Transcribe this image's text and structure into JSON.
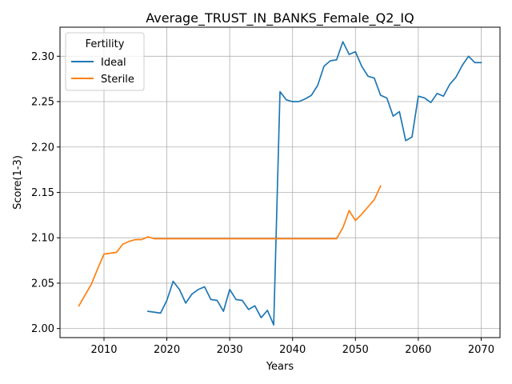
{
  "chart_data": {
    "type": "line",
    "title": "Average_TRUST_IN_BANKS_Female_Q2_IQ",
    "xlabel": "Years",
    "ylabel": "Score(1-3)",
    "xlim": [
      2003,
      2073
    ],
    "ylim": [
      1.99,
      2.332
    ],
    "x_ticks": [
      2010,
      2020,
      2030,
      2040,
      2050,
      2060,
      2070
    ],
    "y_ticks": [
      2.0,
      2.05,
      2.1,
      2.15,
      2.2,
      2.25,
      2.3
    ],
    "x_tick_labels": [
      "2010",
      "2020",
      "2030",
      "2040",
      "2050",
      "2060",
      "2070"
    ],
    "y_tick_labels": [
      "2.00",
      "2.05",
      "2.10",
      "2.15",
      "2.20",
      "2.25",
      "2.30"
    ],
    "grid": true,
    "legend": {
      "title": "Fertility",
      "placement": "top-left"
    },
    "series": [
      {
        "name": "Ideal",
        "color": "#1f77b4",
        "points": [
          [
            2017,
            2.019
          ],
          [
            2018,
            2.018
          ],
          [
            2019,
            2.017
          ],
          [
            2020,
            2.031
          ],
          [
            2021,
            2.052
          ],
          [
            2022,
            2.043
          ],
          [
            2023,
            2.028
          ],
          [
            2024,
            2.038
          ],
          [
            2025,
            2.043
          ],
          [
            2026,
            2.046
          ],
          [
            2027,
            2.032
          ],
          [
            2028,
            2.031
          ],
          [
            2029,
            2.019
          ],
          [
            2030,
            2.043
          ],
          [
            2031,
            2.032
          ],
          [
            2032,
            2.031
          ],
          [
            2033,
            2.021
          ],
          [
            2034,
            2.025
          ],
          [
            2035,
            2.012
          ],
          [
            2036,
            2.02
          ],
          [
            2037,
            2.004
          ],
          [
            2038,
            2.261
          ],
          [
            2039,
            2.252
          ],
          [
            2040,
            2.25
          ],
          [
            2041,
            2.25
          ],
          [
            2042,
            2.253
          ],
          [
            2043,
            2.257
          ],
          [
            2044,
            2.268
          ],
          [
            2045,
            2.289
          ],
          [
            2046,
            2.295
          ],
          [
            2047,
            2.296
          ],
          [
            2048,
            2.316
          ],
          [
            2049,
            2.302
          ],
          [
            2050,
            2.305
          ],
          [
            2051,
            2.289
          ],
          [
            2052,
            2.278
          ],
          [
            2053,
            2.276
          ],
          [
            2054,
            2.257
          ],
          [
            2055,
            2.254
          ],
          [
            2056,
            2.234
          ],
          [
            2057,
            2.239
          ],
          [
            2058,
            2.207
          ],
          [
            2059,
            2.211
          ],
          [
            2060,
            2.256
          ],
          [
            2061,
            2.254
          ],
          [
            2062,
            2.249
          ],
          [
            2063,
            2.259
          ],
          [
            2064,
            2.256
          ],
          [
            2065,
            2.269
          ],
          [
            2066,
            2.277
          ],
          [
            2067,
            2.29
          ],
          [
            2068,
            2.3
          ],
          [
            2069,
            2.293
          ],
          [
            2070,
            2.293
          ]
        ]
      },
      {
        "name": "Sterile",
        "color": "#ff7f0e",
        "points": [
          [
            2006,
            2.025
          ],
          [
            2007,
            2.037
          ],
          [
            2008,
            2.049
          ],
          [
            2009,
            2.066
          ],
          [
            2010,
            2.082
          ],
          [
            2011,
            2.083
          ],
          [
            2012,
            2.084
          ],
          [
            2013,
            2.093
          ],
          [
            2014,
            2.096
          ],
          [
            2015,
            2.098
          ],
          [
            2016,
            2.098
          ],
          [
            2017,
            2.101
          ],
          [
            2018,
            2.099
          ],
          [
            2019,
            2.099
          ],
          [
            2020,
            2.099
          ],
          [
            2025,
            2.099
          ],
          [
            2030,
            2.099
          ],
          [
            2035,
            2.099
          ],
          [
            2040,
            2.099
          ],
          [
            2045,
            2.099
          ],
          [
            2047,
            2.099
          ],
          [
            2048,
            2.111
          ],
          [
            2049,
            2.13
          ],
          [
            2050,
            2.119
          ],
          [
            2051,
            2.126
          ],
          [
            2052,
            2.134
          ],
          [
            2053,
            2.142
          ],
          [
            2054,
            2.157
          ]
        ]
      }
    ]
  }
}
